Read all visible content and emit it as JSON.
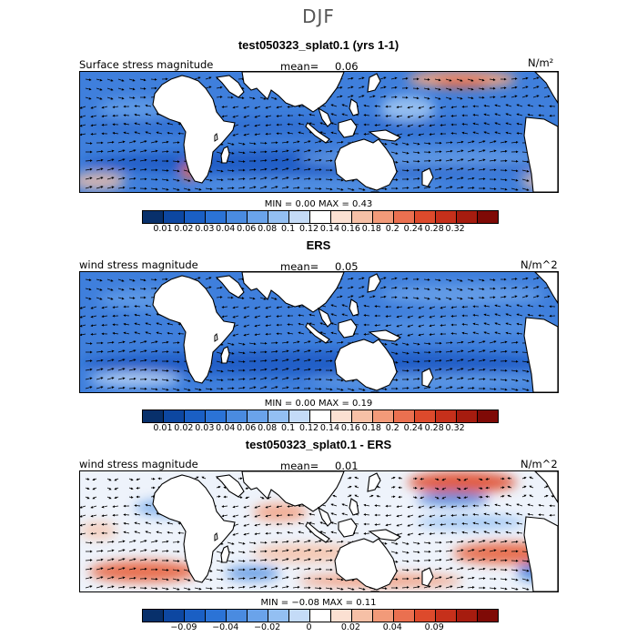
{
  "title": "DJF",
  "colorbar_colors": [
    "#08306b",
    "#0d47a1",
    "#1a5fc4",
    "#2b73d6",
    "#4a8be0",
    "#6aa3ea",
    "#93bff2",
    "#c4dbf7",
    "#ffffff",
    "#fbe0d2",
    "#f6c0a6",
    "#f29a79",
    "#ea7050",
    "#dd4a2c",
    "#c6301b",
    "#a61c0f",
    "#7f0a06"
  ],
  "panels": [
    {
      "title": "test050323_splat0.1 (yrs 1-1)",
      "left_label": "Surface stress magnitude",
      "mean_label": "mean=",
      "mean_value": "0.06",
      "unit": "N/m²",
      "min_label": "MIN =",
      "min_value": "0.00",
      "max_label": "MAX =",
      "max_value": "0.43",
      "ticks": [
        "0.01",
        "0.02",
        "0.03",
        "0.04",
        "0.06",
        "0.08",
        "0.1",
        "0.12",
        "0.14",
        "0.16",
        "0.18",
        "0.2",
        "0.24",
        "0.28",
        "0.32"
      ],
      "kind": "abs"
    },
    {
      "title": "ERS",
      "left_label": "wind stress magnitude",
      "mean_label": "mean=",
      "mean_value": "0.05",
      "unit": "N/m^2",
      "min_label": "MIN =",
      "min_value": "0.00",
      "max_label": "MAX =",
      "max_value": "0.19",
      "ticks": [
        "0.01",
        "0.02",
        "0.03",
        "0.04",
        "0.06",
        "0.08",
        "0.1",
        "0.12",
        "0.14",
        "0.16",
        "0.18",
        "0.2",
        "0.24",
        "0.28",
        "0.32"
      ],
      "kind": "abs"
    },
    {
      "title": "test050323_splat0.1 - ERS",
      "left_label": "wind stress magnitude",
      "mean_label": "mean=",
      "mean_value": "0.01",
      "unit": "N/m^2",
      "min_label": "MIN =",
      "min_value": "−0.08",
      "max_label": "MAX =",
      "max_value": "0.11",
      "ticks": [
        "−0.09",
        "−0.04",
        "−0.02",
        "0",
        "0.02",
        "0.04",
        "0.09"
      ],
      "kind": "diff"
    }
  ]
}
